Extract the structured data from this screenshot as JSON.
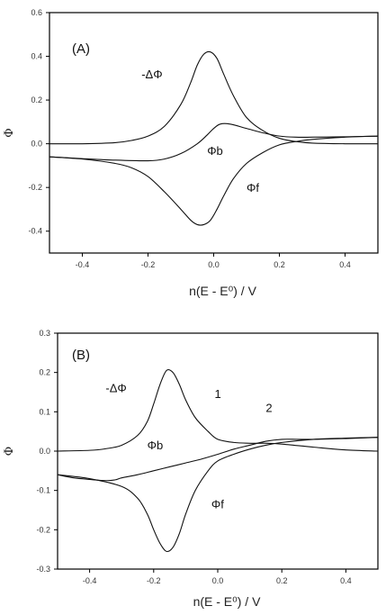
{
  "chart_data": [
    {
      "type": "line",
      "panel_label": "(A)",
      "xlabel": "n(E - E⁰) / V",
      "ylabel": "Φ",
      "xlim": [
        -0.5,
        0.5
      ],
      "ylim": [
        -0.5,
        0.6
      ],
      "xticks": [
        -0.4,
        -0.2,
        0.0,
        0.2,
        0.4
      ],
      "xtick_labels": [
        "-0.4",
        "-0.2",
        "0.0",
        "0.2",
        "0.4"
      ],
      "yticks": [
        -0.4,
        -0.2,
        0.0,
        0.2,
        0.4,
        0.6
      ],
      "ytick_labels": [
        "-0.4",
        "-0.2",
        "0.0",
        "0.2",
        "0.4",
        "0.6"
      ],
      "annotations": [
        {
          "text": "-ΔΦ",
          "x": -0.22,
          "y": 0.3
        },
        {
          "text": "Φb",
          "x": -0.02,
          "y": -0.05
        },
        {
          "text": "Φf",
          "x": 0.1,
          "y": -0.22
        }
      ],
      "series": [
        {
          "name": "-ΔΦ",
          "x": [
            -0.5,
            -0.4,
            -0.3,
            -0.25,
            -0.2,
            -0.15,
            -0.1,
            -0.07,
            -0.05,
            -0.03,
            -0.01,
            0.01,
            0.03,
            0.06,
            0.1,
            0.15,
            0.2,
            0.25,
            0.3,
            0.4,
            0.5
          ],
          "values": [
            0.0,
            0.0,
            0.005,
            0.015,
            0.035,
            0.08,
            0.18,
            0.28,
            0.36,
            0.41,
            0.42,
            0.39,
            0.32,
            0.22,
            0.12,
            0.06,
            0.025,
            0.01,
            0.003,
            0.0,
            0.0
          ]
        },
        {
          "name": "Φb",
          "x": [
            -0.5,
            -0.4,
            -0.3,
            -0.2,
            -0.15,
            -0.1,
            -0.05,
            -0.02,
            0.0,
            0.02,
            0.05,
            0.1,
            0.15,
            0.2,
            0.25,
            0.3,
            0.4,
            0.5
          ],
          "values": [
            -0.06,
            -0.068,
            -0.075,
            -0.078,
            -0.07,
            -0.045,
            0.0,
            0.04,
            0.07,
            0.09,
            0.09,
            0.07,
            0.05,
            0.035,
            0.03,
            0.03,
            0.032,
            0.035
          ]
        },
        {
          "name": "Φf",
          "x": [
            -0.5,
            -0.4,
            -0.3,
            -0.25,
            -0.2,
            -0.15,
            -0.1,
            -0.07,
            -0.05,
            -0.03,
            -0.01,
            0.01,
            0.03,
            0.06,
            0.1,
            0.15,
            0.2,
            0.25,
            0.3,
            0.4,
            0.5
          ],
          "values": [
            -0.06,
            -0.07,
            -0.09,
            -0.11,
            -0.15,
            -0.22,
            -0.3,
            -0.35,
            -0.37,
            -0.37,
            -0.35,
            -0.3,
            -0.24,
            -0.16,
            -0.09,
            -0.04,
            -0.005,
            0.01,
            0.02,
            0.03,
            0.035
          ]
        }
      ]
    },
    {
      "type": "line",
      "panel_label": "(B)",
      "xlabel": "n(E - E⁰) / V",
      "ylabel": "Φ",
      "xlim": [
        -0.5,
        0.5
      ],
      "ylim": [
        -0.3,
        0.3
      ],
      "xticks": [
        -0.4,
        -0.2,
        0.0,
        0.2,
        0.4
      ],
      "xtick_labels": [
        "-0.4",
        "-0.2",
        "0.0",
        "0.2",
        "0.4"
      ],
      "yticks": [
        -0.3,
        -0.2,
        -0.1,
        0.0,
        0.1,
        0.2,
        0.3
      ],
      "ytick_labels": [
        "-0.3",
        "-0.2",
        "-0.1",
        "0.0",
        "0.1",
        "0.2",
        "0.3"
      ],
      "annotations": [
        {
          "text": "-ΔΦ",
          "x": -0.35,
          "y": 0.15
        },
        {
          "text": "1",
          "x": -0.01,
          "y": 0.135
        },
        {
          "text": "2",
          "x": 0.15,
          "y": 0.1
        },
        {
          "text": "Φb",
          "x": -0.22,
          "y": 0.005
        },
        {
          "text": "Φf",
          "x": -0.02,
          "y": -0.145
        }
      ],
      "series": [
        {
          "name": "-ΔΦ",
          "x": [
            -0.5,
            -0.4,
            -0.35,
            -0.3,
            -0.25,
            -0.22,
            -0.2,
            -0.18,
            -0.16,
            -0.14,
            -0.12,
            -0.1,
            -0.07,
            -0.03,
            0.0,
            0.05,
            0.1,
            0.15,
            0.2,
            0.3,
            0.4,
            0.5
          ],
          "values": [
            0.0,
            0.002,
            0.006,
            0.015,
            0.04,
            0.075,
            0.12,
            0.17,
            0.205,
            0.2,
            0.17,
            0.13,
            0.085,
            0.05,
            0.03,
            0.022,
            0.02,
            0.02,
            0.018,
            0.01,
            0.003,
            0.0
          ]
        },
        {
          "name": "Φb",
          "x": [
            -0.5,
            -0.45,
            -0.4,
            -0.35,
            -0.32,
            -0.3,
            -0.25,
            -0.2,
            -0.15,
            -0.1,
            -0.05,
            0.0,
            0.05,
            0.1,
            0.15,
            0.2,
            0.25,
            0.3,
            0.4,
            0.5
          ],
          "values": [
            -0.06,
            -0.068,
            -0.072,
            -0.075,
            -0.073,
            -0.068,
            -0.06,
            -0.05,
            -0.04,
            -0.03,
            -0.02,
            -0.008,
            0.005,
            0.015,
            0.025,
            0.03,
            0.03,
            0.03,
            0.032,
            0.035
          ]
        },
        {
          "name": "Φf",
          "x": [
            -0.5,
            -0.4,
            -0.3,
            -0.25,
            -0.22,
            -0.2,
            -0.18,
            -0.16,
            -0.14,
            -0.12,
            -0.1,
            -0.07,
            -0.03,
            0.0,
            0.05,
            0.1,
            0.15,
            0.2,
            0.3,
            0.4,
            0.5
          ],
          "values": [
            -0.06,
            -0.07,
            -0.09,
            -0.12,
            -0.16,
            -0.2,
            -0.235,
            -0.255,
            -0.245,
            -0.21,
            -0.16,
            -0.1,
            -0.05,
            -0.025,
            -0.008,
            0.005,
            0.015,
            0.022,
            0.03,
            0.033,
            0.035
          ]
        }
      ]
    }
  ]
}
